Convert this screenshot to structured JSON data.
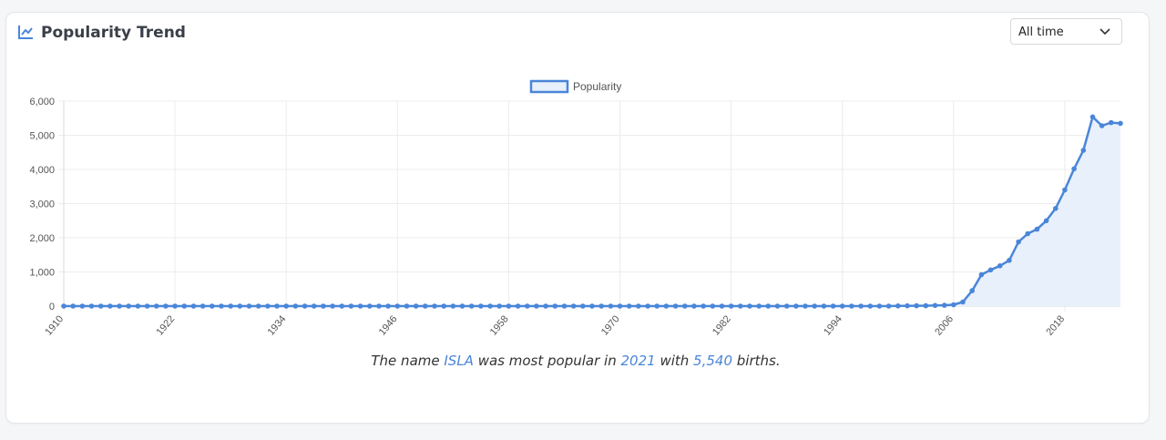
{
  "header": {
    "title": "Popularity Trend",
    "icon": "line-chart-icon"
  },
  "range_select": {
    "value": "All time",
    "icon": "chevron-down-icon"
  },
  "colors": {
    "line": "#4a86d8",
    "fill": "#e8f0fc",
    "grid": "#ececec"
  },
  "chart_data": {
    "type": "line",
    "legend": {
      "label": "Popularity",
      "position": "top"
    },
    "x_start": 1910,
    "x_end": 2024,
    "x_ticks": [
      1910,
      1922,
      1934,
      1946,
      1958,
      1970,
      1982,
      1994,
      2006,
      2018
    ],
    "y_ticks": [
      0,
      1000,
      2000,
      3000,
      4000,
      5000,
      6000
    ],
    "y_tick_labels": [
      "0",
      "1,000",
      "2,000",
      "3,000",
      "4,000",
      "5,000",
      "6,000"
    ],
    "ylim": [
      0,
      6000
    ],
    "grid": true,
    "nonzero_points": [
      [
        2000,
        5
      ],
      [
        2001,
        8
      ],
      [
        2002,
        10
      ],
      [
        2003,
        12
      ],
      [
        2004,
        18
      ],
      [
        2005,
        25
      ],
      [
        2006,
        40
      ],
      [
        2007,
        120
      ],
      [
        2008,
        450
      ],
      [
        2009,
        920
      ],
      [
        2010,
        1060
      ],
      [
        2011,
        1180
      ],
      [
        2012,
        1340
      ],
      [
        2013,
        1880
      ],
      [
        2014,
        2120
      ],
      [
        2015,
        2250
      ],
      [
        2016,
        2500
      ],
      [
        2017,
        2860
      ],
      [
        2018,
        3400
      ],
      [
        2019,
        4020
      ],
      [
        2020,
        4560
      ],
      [
        2021,
        5540
      ],
      [
        2022,
        5280
      ],
      [
        2023,
        5370
      ],
      [
        2024,
        5350
      ]
    ]
  },
  "caption": {
    "prefix": "The name ",
    "name": "ISLA",
    "mid1": " was most popular in ",
    "year": "2021",
    "mid2": " with ",
    "births": "5,540",
    "suffix": " births."
  }
}
